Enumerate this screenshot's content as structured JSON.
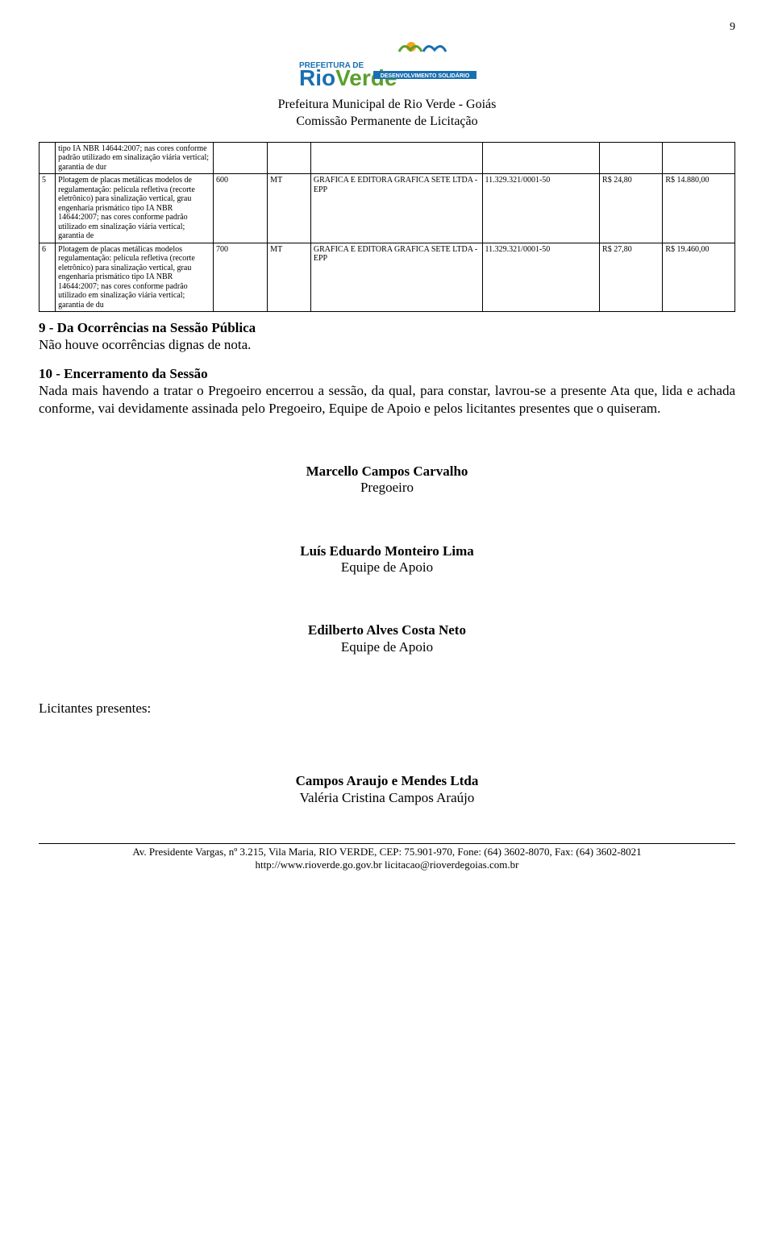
{
  "page_number": "9",
  "header": {
    "line1": "Prefeitura Municipal de Rio Verde - Goiás",
    "line2": "Comissão Permanente de Licitação"
  },
  "logo": {
    "main": "RioVerde",
    "tagline": "DESENVOLVIMENTO SOLIDÁRIO",
    "pref_line": "PREFEITURA DE"
  },
  "table": {
    "rows": [
      {
        "num": "",
        "desc": "tipo IA NBR 14644:2007; nas cores conforme padrão utilizado em sinalização viária vertical; garantia de dur",
        "qty": "",
        "unit": "",
        "vendor": "",
        "cnpj": "",
        "price1": "",
        "price2": ""
      },
      {
        "num": "5",
        "desc": "Plotagem de placas metálicas modelos de regulamentação: película refletiva (recorte eletrônico) para sinalização vertical, grau engenharia prismático tipo IA NBR 14644:2007; nas cores conforme padrão utilizado em sinalização viária vertical; garantia de",
        "qty": "600",
        "unit": "MT",
        "vendor": "GRAFICA E EDITORA GRAFICA SETE LTDA - EPP",
        "cnpj": "11.329.321/0001-50",
        "price1": "R$ 24,80",
        "price2": "R$ 14.880,00"
      },
      {
        "num": "6",
        "desc": "Plotagem de placas metálicas modelos regulamentação: película refletiva (recorte eletrônico) para sinalização vertical, grau engenharia prismático tipo IA NBR 14644:2007; nas cores conforme padrão utilizado em sinalização viária vertical; garantia de du",
        "qty": "700",
        "unit": "MT",
        "vendor": "GRAFICA E EDITORA GRAFICA SETE LTDA - EPP",
        "cnpj": "11.329.321/0001-50",
        "price1": "R$ 27,80",
        "price2": "R$ 19.460,00"
      }
    ]
  },
  "section9": {
    "heading": "9 - Da Ocorrências na Sessão Pública",
    "body": "Não houve ocorrências dignas de nota."
  },
  "section10": {
    "heading": "10 - Encerramento da Sessão",
    "body": "Nada mais havendo a tratar o Pregoeiro encerrou a sessão, da qual, para constar, lavrou-se a presente Ata que, lida e achada conforme, vai devidamente assinada pelo Pregoeiro, Equipe de Apoio e pelos licitantes presentes que o quiseram."
  },
  "signatures": [
    {
      "name": "Marcello Campos Carvalho",
      "role": "Pregoeiro"
    },
    {
      "name": "Luís Eduardo Monteiro Lima",
      "role": "Equipe de Apoio"
    },
    {
      "name": "Edilberto Alves Costa Neto",
      "role": "Equipe de Apoio"
    }
  ],
  "licitantes_label": "Licitantes presentes:",
  "company": {
    "name": "Campos Araujo e Mendes Ltda",
    "rep": "Valéria Cristina Campos Araújo"
  },
  "footer": {
    "line1": "Av. Presidente Vargas, nº 3.215, Vila Maria, RIO VERDE, CEP: 75.901-970, Fone: (64) 3602-8070, Fax: (64) 3602-8021",
    "line2": "http://www.rioverde.go.gov.br   licitacao@rioverdegoias.com.br"
  }
}
